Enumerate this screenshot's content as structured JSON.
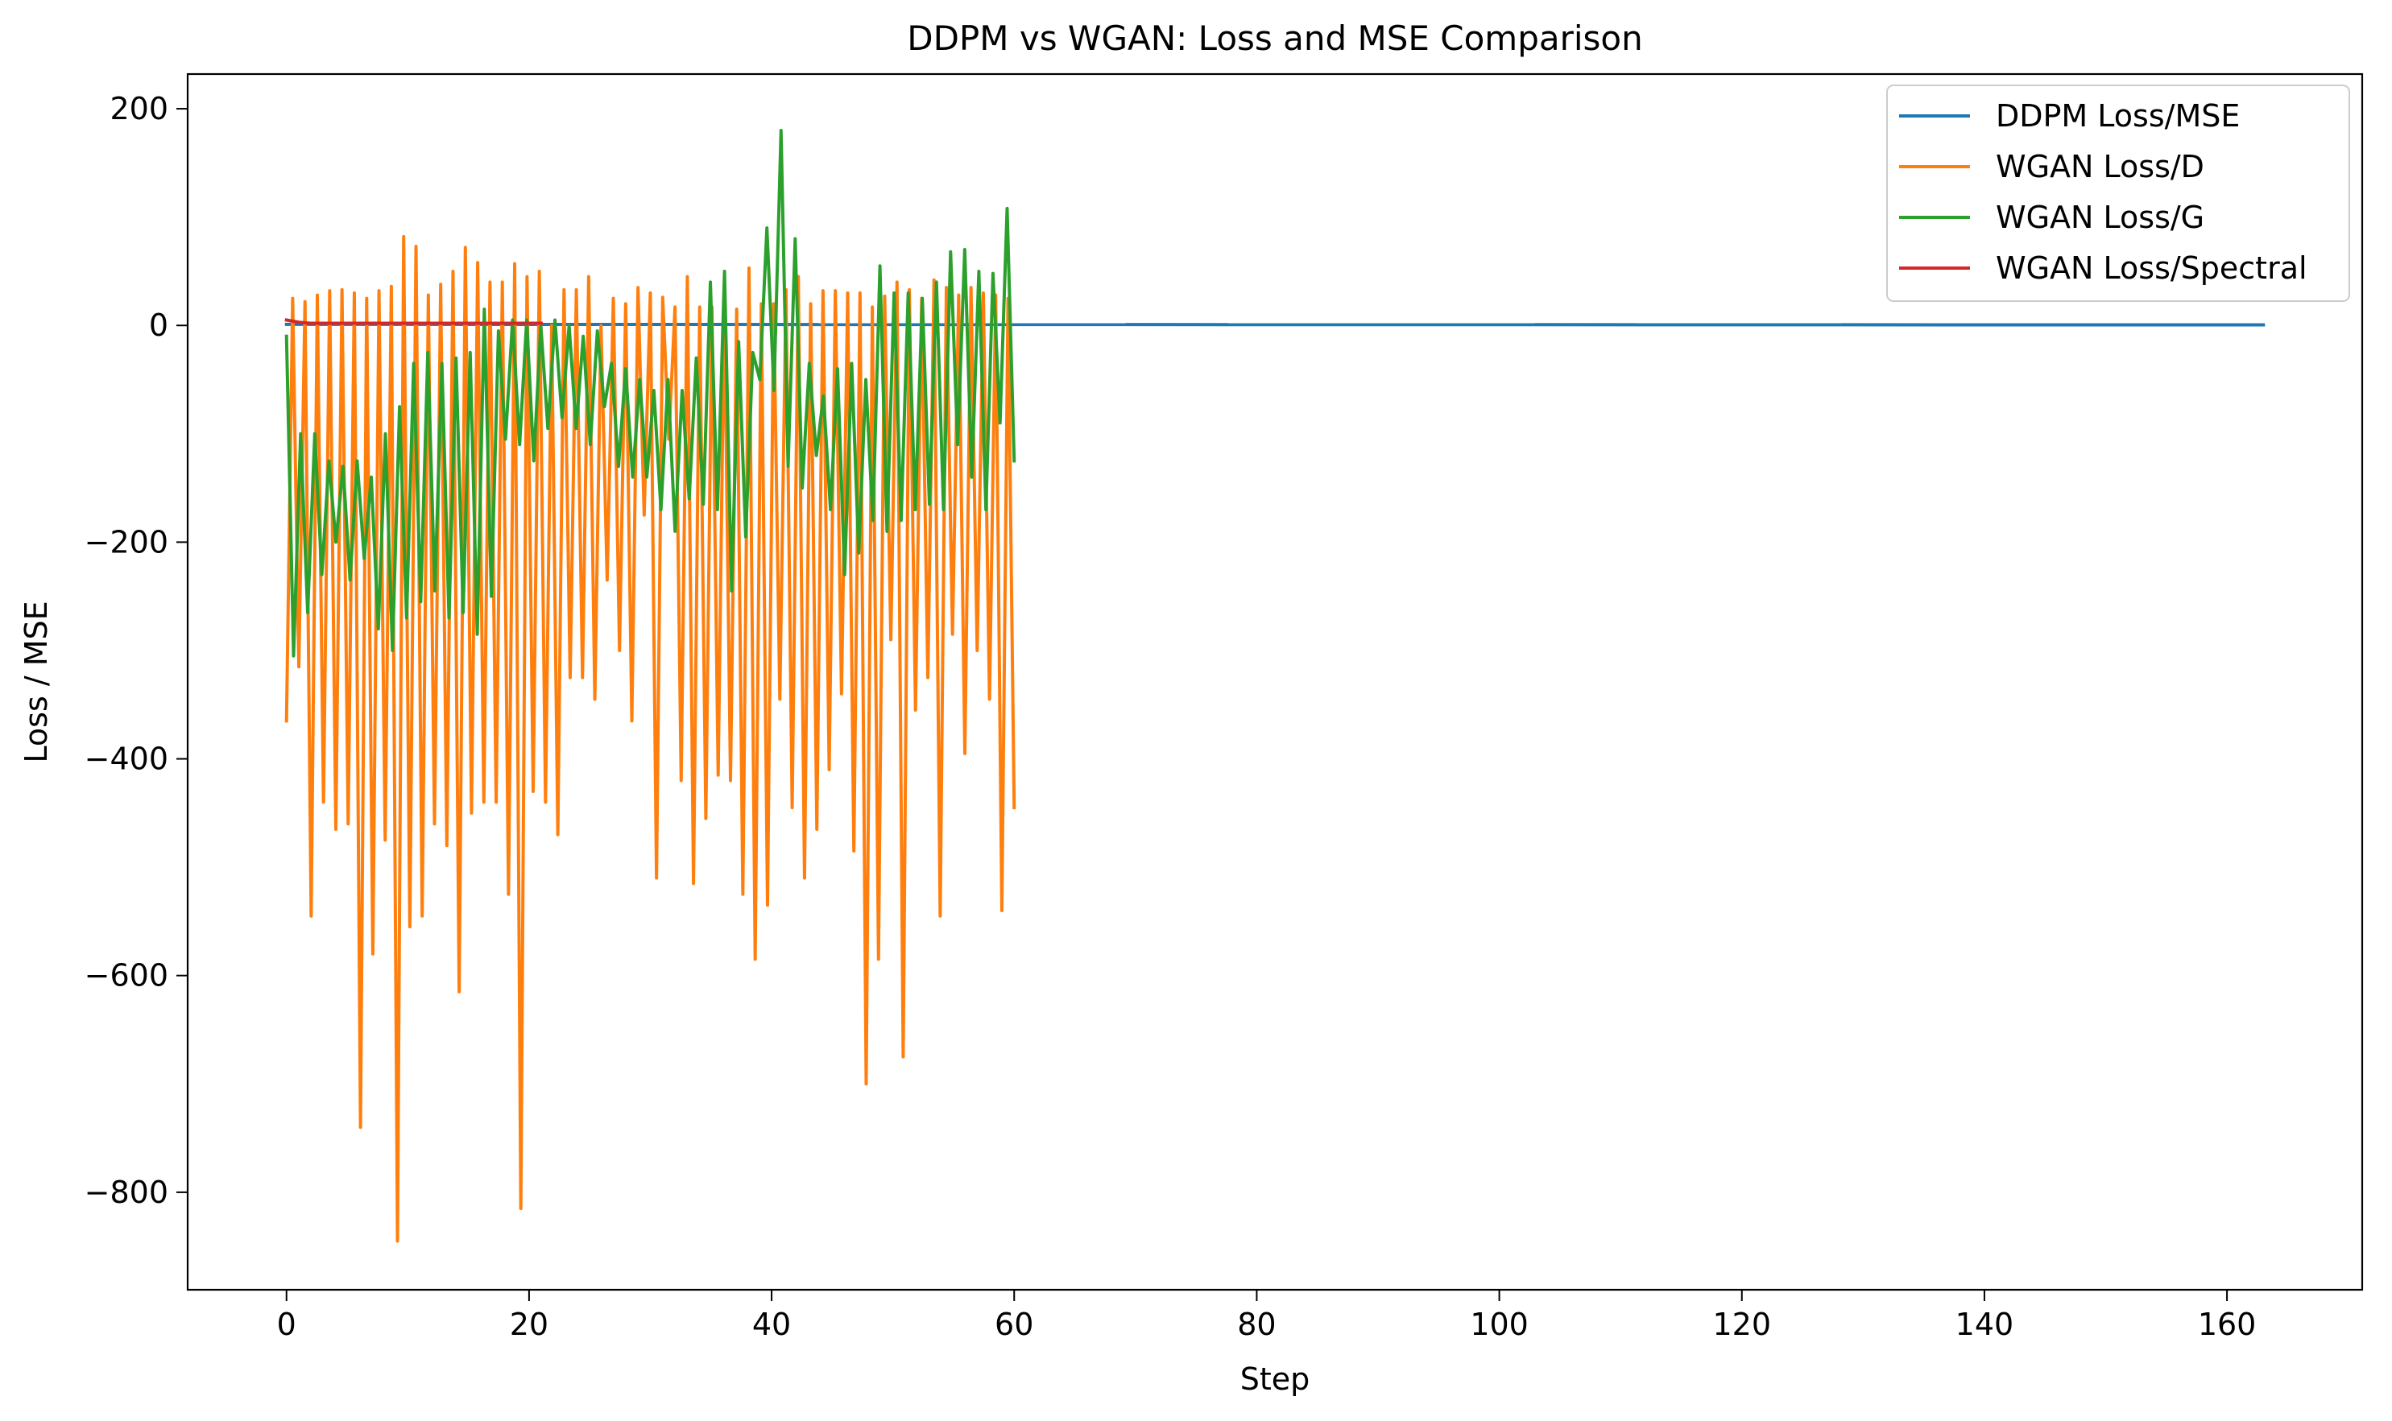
{
  "chart_data": {
    "type": "line",
    "title": "DDPM vs WGAN: Loss and MSE Comparison",
    "xlabel": "Step",
    "ylabel": "Loss / MSE",
    "xlim": [
      -8.15,
      171.15
    ],
    "ylim": [
      -890,
      232
    ],
    "xticks": [
      0,
      20,
      40,
      60,
      80,
      100,
      120,
      140,
      160
    ],
    "yticks": [
      -800,
      -600,
      -400,
      -200,
      0,
      200
    ],
    "grid": false,
    "legend_position": "top-right",
    "x_step": 0.5,
    "series": [
      {
        "name": "DDPM Loss/MSE",
        "color": "#1f77b4",
        "x_start": 0,
        "x_end": 163,
        "values": [
          1.0,
          0.5
        ]
      },
      {
        "name": "WGAN Loss/D",
        "color": "#ff7f0e",
        "x_start": 0,
        "x_end": 60,
        "values": [
          -365,
          25,
          -315,
          22,
          -545,
          28,
          -440,
          32,
          -465,
          33,
          -460,
          30,
          -740,
          25,
          -580,
          32,
          -475,
          36,
          -845,
          82,
          -555,
          73,
          -545,
          28,
          -460,
          38,
          -480,
          50,
          -615,
          72,
          -450,
          58,
          -440,
          40,
          -440,
          40,
          -525,
          57,
          -815,
          45,
          -430,
          50,
          -440,
          0,
          -470,
          33,
          -325,
          33,
          -325,
          45,
          -345,
          0,
          -235,
          25,
          -300,
          20,
          -365,
          35,
          -175,
          30,
          -510,
          26,
          -105,
          17,
          -420,
          45,
          -515,
          17,
          -455,
          17,
          -415,
          27,
          -420,
          15,
          -525,
          53,
          -585,
          20,
          -535,
          20,
          -345,
          33,
          -445,
          45,
          -510,
          20,
          -465,
          32,
          -410,
          32,
          -340,
          30,
          -485,
          30,
          -700,
          17,
          -585,
          27,
          -290,
          40,
          -675,
          33,
          -355,
          25,
          -325,
          42,
          -545,
          35,
          -285,
          28,
          -395,
          35,
          -300,
          30,
          -345,
          28,
          -540,
          25,
          -445
        ]
      },
      {
        "name": "WGAN Loss/G",
        "color": "#2ca02c",
        "x_start": 0,
        "x_end": 60,
        "values": [
          -10,
          -305,
          -100,
          -265,
          -100,
          -230,
          -125,
          -200,
          -130,
          -235,
          -125,
          -215,
          -140,
          -280,
          -100,
          -300,
          -75,
          -270,
          -35,
          -255,
          -25,
          -245,
          -35,
          -270,
          -30,
          -265,
          -25,
          -285,
          15,
          -250,
          -5,
          -105,
          5,
          -110,
          5,
          -125,
          0,
          -95,
          5,
          -85,
          0,
          -95,
          -10,
          -110,
          -5,
          -75,
          -35,
          -130,
          -40,
          -140,
          -50,
          -140,
          -60,
          -170,
          -50,
          -190,
          -60,
          -160,
          -30,
          -165,
          40,
          -170,
          50,
          -245,
          -15,
          -195,
          -25,
          -50,
          90,
          -60,
          180,
          -130,
          80,
          -150,
          -35,
          -120,
          -65,
          -170,
          -40,
          -230,
          -35,
          -210,
          -50,
          -180,
          55,
          -190,
          30,
          -180,
          30,
          -170,
          25,
          -165,
          40,
          -170,
          68,
          -110,
          70,
          -140,
          50,
          -170,
          48,
          -90,
          108,
          -125
        ]
      },
      {
        "name": "WGAN Loss/Spectral",
        "color": "#d62728",
        "x_start": 0,
        "x_end": 21,
        "values": [
          5,
          3,
          2,
          2,
          2,
          2,
          2,
          2,
          2,
          2,
          2,
          2,
          2,
          2,
          2,
          2,
          2,
          2,
          2,
          2,
          2,
          2
        ]
      }
    ]
  }
}
